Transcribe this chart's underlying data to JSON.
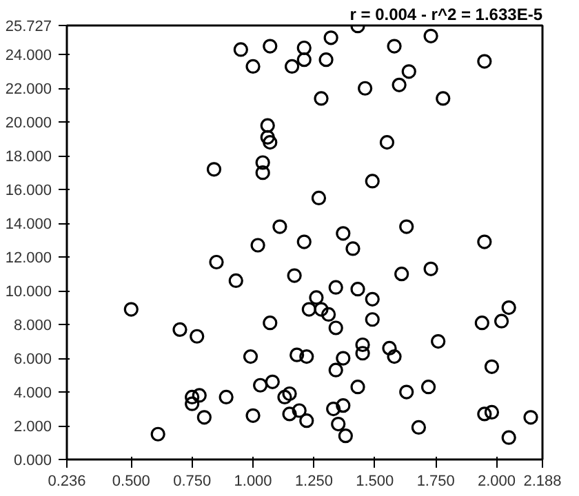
{
  "chart_data": {
    "type": "scatter",
    "marker": "circle",
    "grid": false,
    "annotations": [
      "r = 0.004 - r^2 = 1.633E-5"
    ],
    "xlim": [
      0.236,
      2.188
    ],
    "ylim": [
      0,
      25.727
    ],
    "xticks": [
      {
        "value": 0.236,
        "label": "0.236"
      },
      {
        "value": 0.5,
        "label": "0.500"
      },
      {
        "value": 0.75,
        "label": "0.750"
      },
      {
        "value": 1.0,
        "label": "1.000"
      },
      {
        "value": 1.25,
        "label": "1.250"
      },
      {
        "value": 1.5,
        "label": "1.500"
      },
      {
        "value": 1.75,
        "label": "1.750"
      },
      {
        "value": 2.0,
        "label": "2.000"
      },
      {
        "value": 2.188,
        "label": "2.188"
      }
    ],
    "yticks": [
      {
        "value": 0,
        "label": "0.000"
      },
      {
        "value": 2,
        "label": "2.000"
      },
      {
        "value": 4,
        "label": "4.000"
      },
      {
        "value": 6,
        "label": "6.000"
      },
      {
        "value": 8,
        "label": "8.000"
      },
      {
        "value": 10,
        "label": "10.000"
      },
      {
        "value": 12,
        "label": "12.000"
      },
      {
        "value": 14,
        "label": "14.000"
      },
      {
        "value": 16,
        "label": "16.000"
      },
      {
        "value": 18,
        "label": "18.000"
      },
      {
        "value": 20,
        "label": "20.000"
      },
      {
        "value": 22,
        "label": "22.000"
      },
      {
        "value": 24,
        "label": "24.000"
      },
      {
        "value": 25.727,
        "label": "25.727"
      }
    ],
    "series": [
      {
        "color": "#000000",
        "x": [
          0.95,
          1.0,
          1.07,
          1.16,
          1.21,
          1.21,
          1.3,
          1.32,
          1.28,
          1.43,
          1.46,
          1.58,
          1.6,
          1.64,
          1.73,
          1.78,
          1.95,
          1.06,
          1.06,
          1.07,
          1.55,
          0.84,
          1.04,
          1.04,
          1.49,
          1.27,
          1.11,
          1.37,
          1.63,
          1.02,
          1.21,
          1.41,
          1.95,
          0.85,
          0.93,
          1.17,
          1.61,
          1.73,
          1.34,
          1.43,
          1.49,
          1.26,
          0.5,
          1.23,
          1.28,
          1.31,
          2.05,
          0.7,
          0.77,
          1.07,
          1.34,
          1.49,
          1.94,
          2.02,
          1.76,
          0.99,
          1.18,
          1.22,
          1.37,
          1.45,
          1.45,
          1.56,
          1.58,
          1.34,
          1.98,
          1.03,
          1.08,
          1.43,
          1.72,
          1.63,
          0.75,
          0.75,
          0.78,
          0.89,
          1.13,
          1.15,
          1.33,
          1.37,
          0.8,
          1.0,
          1.15,
          1.19,
          1.22,
          1.35,
          1.68,
          1.95,
          1.98,
          2.14,
          0.61,
          1.38,
          2.05
        ],
        "values": [
          24.3,
          23.3,
          24.5,
          23.3,
          24.4,
          23.7,
          23.7,
          25.0,
          21.4,
          25.7,
          22.0,
          24.5,
          22.2,
          23.0,
          25.1,
          21.4,
          23.6,
          19.8,
          19.1,
          18.8,
          18.8,
          17.2,
          17.6,
          17.0,
          16.5,
          15.5,
          13.8,
          13.4,
          13.8,
          12.7,
          12.9,
          12.5,
          12.9,
          11.7,
          10.6,
          10.9,
          11.0,
          11.3,
          10.2,
          10.1,
          9.5,
          9.6,
          8.9,
          8.9,
          8.9,
          8.6,
          9.0,
          7.7,
          7.3,
          8.1,
          7.8,
          8.3,
          8.1,
          8.2,
          7.0,
          6.1,
          6.2,
          6.1,
          6.0,
          6.8,
          6.3,
          6.6,
          6.1,
          5.3,
          5.5,
          4.4,
          4.6,
          4.3,
          4.3,
          4.0,
          3.3,
          3.7,
          3.8,
          3.7,
          3.7,
          3.9,
          3.0,
          3.2,
          2.5,
          2.6,
          2.7,
          2.9,
          2.3,
          2.1,
          1.9,
          2.7,
          2.8,
          2.5,
          1.5,
          1.4,
          1.3
        ]
      }
    ]
  }
}
